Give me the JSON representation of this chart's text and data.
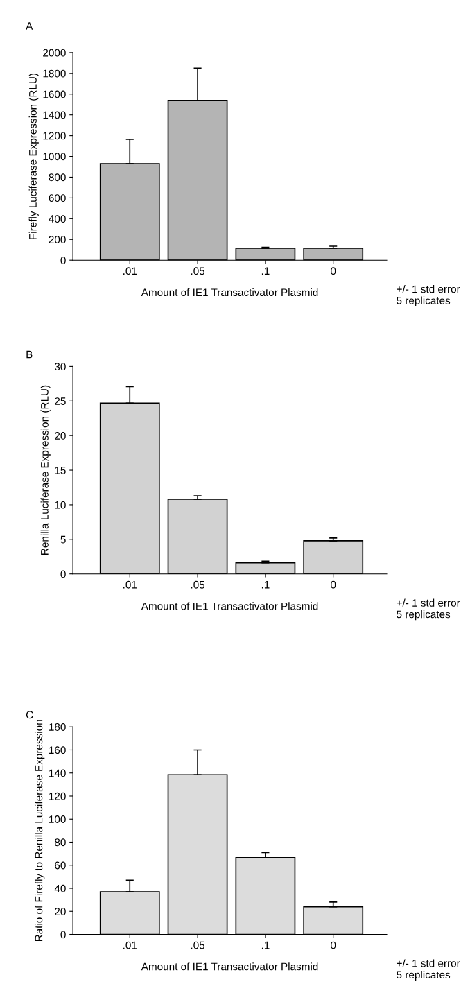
{
  "chart_data": [
    {
      "type": "bar",
      "title": "A",
      "xlabel": "Amount of IE1 Transactivator Plasmid",
      "ylabel": "Firefly Luciferase Expression (RLU)",
      "categories": [
        ".01",
        ".05",
        ".1",
        "0"
      ],
      "values": [
        930,
        1540,
        115,
        115
      ],
      "errors": [
        [
          930,
          1165
        ],
        [
          1540,
          1850
        ],
        [
          115,
          125
        ],
        [
          115,
          135
        ]
      ],
      "color": "#b4b4b4",
      "ylim": [
        0,
        2000
      ],
      "yticks": [
        0,
        200,
        400,
        600,
        800,
        1000,
        1200,
        1400,
        1600,
        1800,
        2000
      ],
      "grid": false,
      "legend": false,
      "annotations": [
        "+/- 1 std error\n5 replicates"
      ]
    },
    {
      "type": "bar",
      "title": "B",
      "xlabel": "Amount of IE1 Transactivator Plasmid",
      "ylabel": "Renilla Luciferase Expression (RLU)",
      "categories": [
        ".01",
        ".05",
        ".1",
        "0"
      ],
      "values": [
        24.7,
        10.8,
        1.6,
        4.8
      ],
      "errors": [
        [
          24.7,
          27.1
        ],
        [
          10.8,
          11.3
        ],
        [
          1.6,
          1.85
        ],
        [
          4.8,
          5.2
        ]
      ],
      "color": "#d2d2d2",
      "ylim": [
        0,
        30
      ],
      "yticks": [
        0,
        5,
        10,
        15,
        20,
        25,
        30
      ],
      "grid": false,
      "legend": false,
      "annotations": [
        "+/- 1 std error\n5 replicates"
      ]
    },
    {
      "type": "bar",
      "title": "C",
      "xlabel": "Amount of IE1 Transactivator Plasmid",
      "ylabel": "Ratio of Firefly to Renilla Luciferase Expression",
      "categories": [
        ".01",
        ".05",
        ".1",
        "0"
      ],
      "values": [
        37,
        138.5,
        66.5,
        24
      ],
      "errors": [
        [
          37,
          47
        ],
        [
          138.5,
          160
        ],
        [
          66.5,
          71
        ],
        [
          24,
          28
        ]
      ],
      "color": "#dcdcdc",
      "ylim": [
        0,
        180
      ],
      "yticks": [
        0,
        20,
        40,
        60,
        80,
        100,
        120,
        140,
        160,
        180
      ],
      "grid": false,
      "legend": false,
      "annotations": [
        "+/- 1 std error\n5 replicates"
      ]
    }
  ]
}
